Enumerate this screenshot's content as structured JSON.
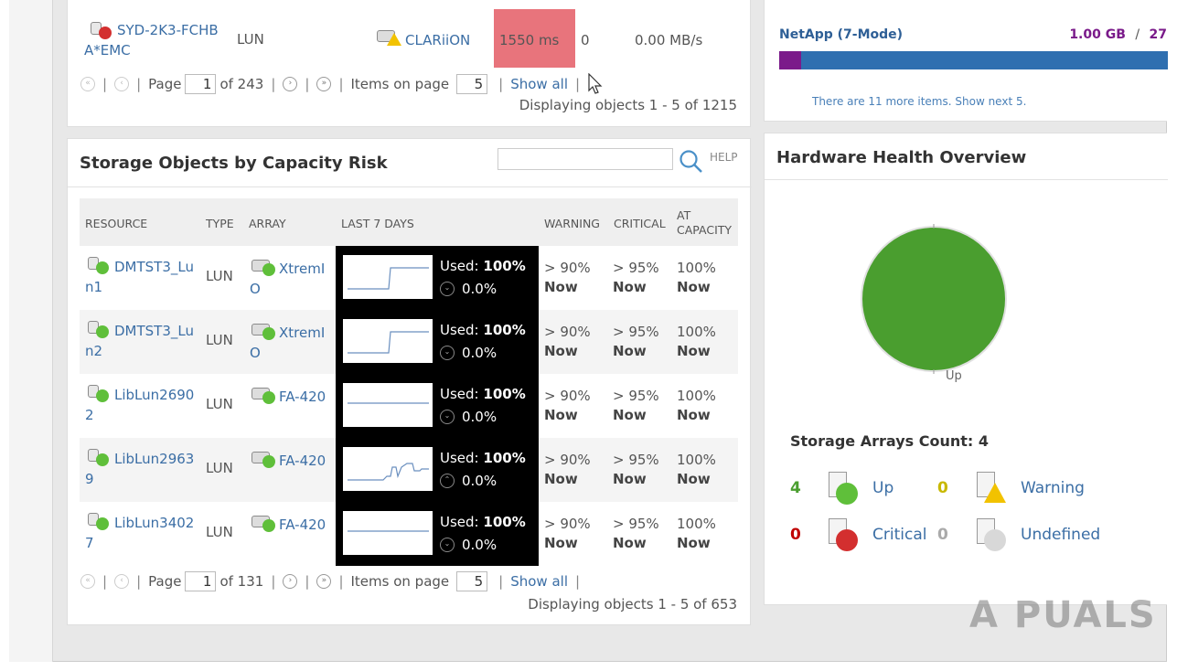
{
  "top_panel": {
    "row": {
      "resource": "SYD-2K3-FCHBA*EMC",
      "type": "LUN",
      "array": "CLARiiON",
      "latency": "1550 ms",
      "count": "0",
      "throughput": "0.00 MB/s"
    },
    "pager": {
      "page_label": "Page",
      "page_value": "1",
      "of_label": "of 243",
      "items_label": "Items on page",
      "items_value": "5",
      "show_all": "Show all"
    },
    "displaying": "Displaying objects 1 - 5 of 1215"
  },
  "netapp_panel": {
    "name": "NetApp (7-Mode)",
    "size": "1.00 GB",
    "slash": "/",
    "size_rest": "27",
    "bar_used_fraction": 0.056,
    "more_items": "There are 11 more items. Show next 5."
  },
  "capacity_panel": {
    "title": "Storage Objects by Capacity Risk",
    "search_placeholder": "",
    "help": "HELP",
    "headers": {
      "resource": "RESOURCE",
      "type": "TYPE",
      "array": "ARRAY",
      "last7": "LAST 7 DAYS",
      "warning": "WARNING",
      "critical": "CRITICAL",
      "at_capacity_1": "AT",
      "at_capacity_2": "CAPACITY"
    },
    "rows": [
      {
        "resource": "DMTST3_Lun1",
        "type": "LUN",
        "array": "XtremIO",
        "used_label": "Used:",
        "used": "100%",
        "change": "0.0%",
        "warning_1": "> 90%",
        "warning_2": "Now",
        "critical_1": "> 95%",
        "critical_2": "Now",
        "cap_1": "100%",
        "cap_2": "Now"
      },
      {
        "resource": "DMTST3_Lun2",
        "type": "LUN",
        "array": "XtremIO",
        "used_label": "Used:",
        "used": "100%",
        "change": "0.0%",
        "warning_1": "> 90%",
        "warning_2": "Now",
        "critical_1": "> 95%",
        "critical_2": "Now",
        "cap_1": "100%",
        "cap_2": "Now"
      },
      {
        "resource": "LibLun26902",
        "type": "LUN",
        "array": "FA-420",
        "used_label": "Used:",
        "used": "100%",
        "change": "0.0%",
        "warning_1": "> 90%",
        "warning_2": "Now",
        "critical_1": "> 95%",
        "critical_2": "Now",
        "cap_1": "100%",
        "cap_2": "Now"
      },
      {
        "resource": "LibLun29639",
        "type": "LUN",
        "array": "FA-420",
        "used_label": "Used:",
        "used": "100%",
        "change": "0.0%",
        "warning_1": "> 90%",
        "warning_2": "Now",
        "critical_1": "> 95%",
        "critical_2": "Now",
        "cap_1": "100%",
        "cap_2": "Now"
      },
      {
        "resource": "LibLun34027",
        "type": "LUN",
        "array": "FA-420",
        "used_label": "Used:",
        "used": "100%",
        "change": "0.0%",
        "warning_1": "> 90%",
        "warning_2": "Now",
        "critical_1": "> 95%",
        "critical_2": "Now",
        "cap_1": "100%",
        "cap_2": "Now"
      }
    ],
    "pager": {
      "page_label": "Page",
      "page_value": "1",
      "of_label": "of 131",
      "items_label": "Items on page",
      "items_value": "5",
      "show_all": "Show all"
    },
    "displaying": "Displaying objects 1 - 5 of 653"
  },
  "health_panel": {
    "title": "Hardware Health Overview",
    "pie_label": "Up",
    "pie_color": "#4a9e2f",
    "count_title": "Storage Arrays Count: 4",
    "legend": [
      {
        "count": "4",
        "label": "Up",
        "count_color": "#4a9e2f",
        "icon": "up-array-icon"
      },
      {
        "count": "0",
        "label": "Warning",
        "count_color": "#c8b800",
        "icon": "warning-array-icon"
      },
      {
        "count": "0",
        "label": "Critical",
        "count_color": "#c00000",
        "icon": "critical-array-icon"
      },
      {
        "count": "0",
        "label": "Undefined",
        "count_color": "#aaaaaa",
        "icon": "undefined-array-icon"
      }
    ]
  },
  "watermark": "A PUALS"
}
